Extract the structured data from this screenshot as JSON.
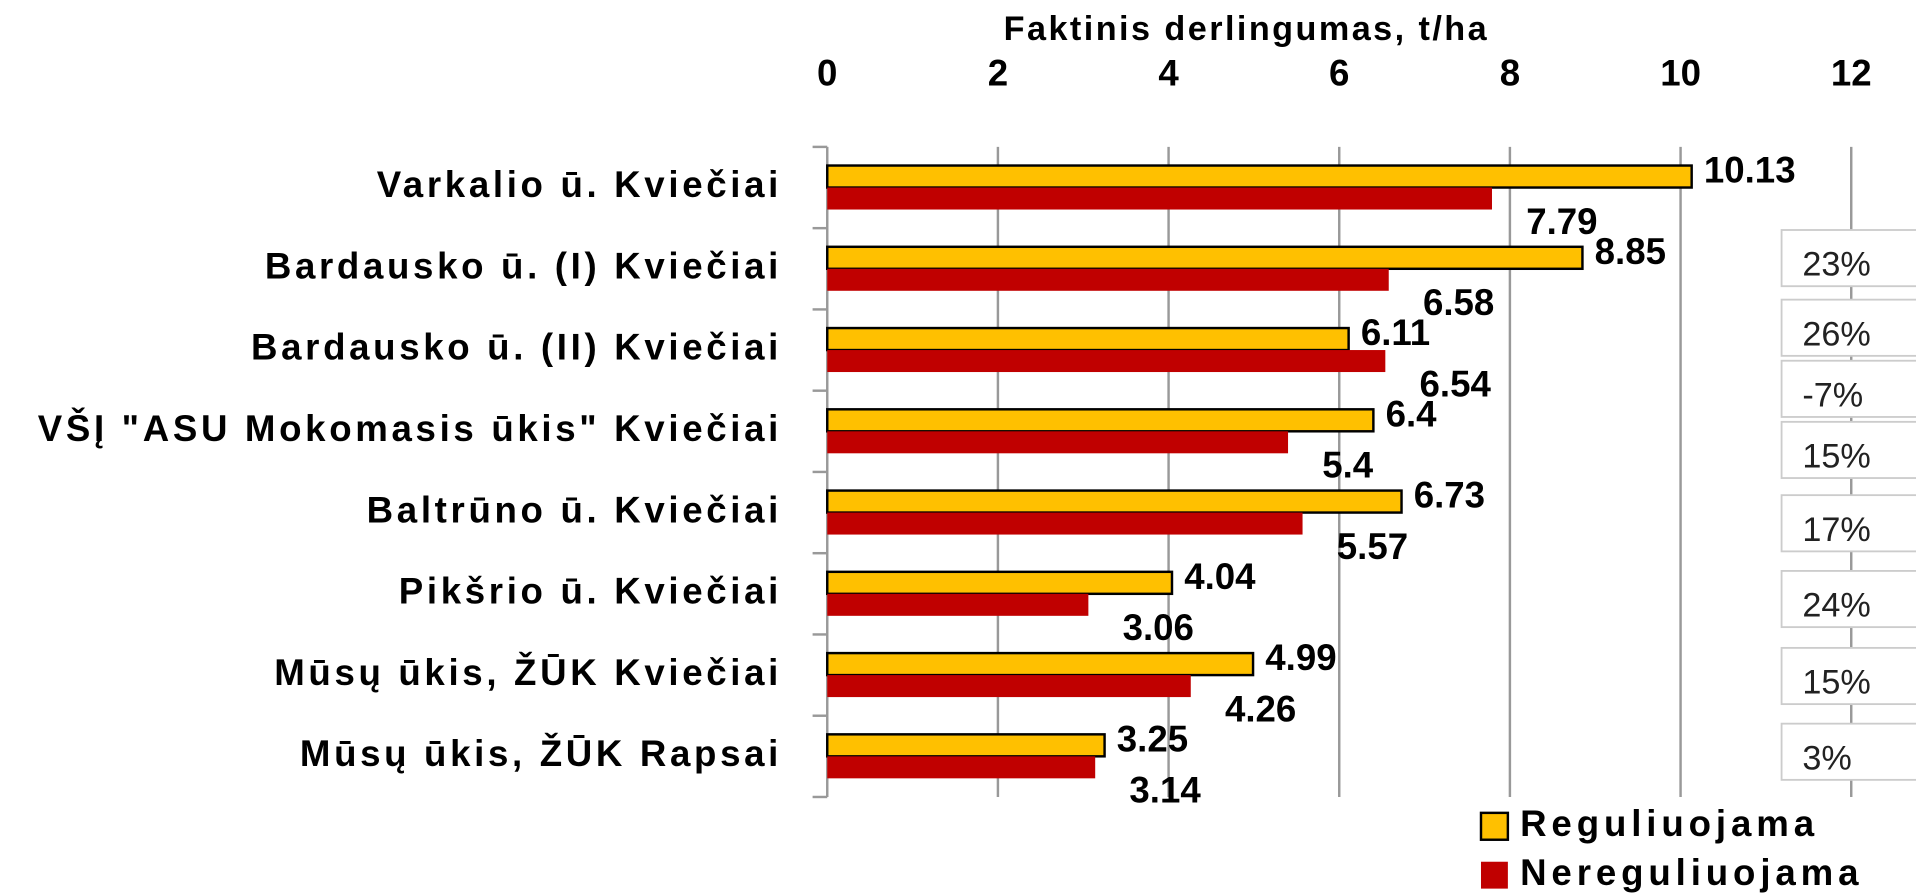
{
  "chart_data": {
    "type": "bar",
    "orientation": "horizontal",
    "title": "Faktinis derlingumas, t/ha",
    "categories": [
      "Varkalio ū. Kviečiai",
      "Bardausko ū. (I) Kviečiai",
      "Bardausko ū. (II) Kviečiai",
      "VŠĮ \"ASU Mokomasis ūkis\" Kviečiai",
      "Baltrūno ū. Kviečiai",
      "Pikšrio ū. Kviečiai",
      "Mūsų ūkis, ŽŪK Kviečiai",
      "Mūsų ūkis, ŽŪK Rapsai"
    ],
    "series": [
      {
        "name": "Reguliuojama",
        "color": "#ffc000",
        "values": [
          10.13,
          8.85,
          6.11,
          6.4,
          6.73,
          4.04,
          4.99,
          3.25
        ]
      },
      {
        "name": "Nereguliuojama",
        "color": "#c00000",
        "values": [
          7.79,
          6.58,
          6.54,
          5.4,
          5.57,
          3.06,
          4.26,
          3.14
        ]
      }
    ],
    "xlim": [
      0,
      12
    ],
    "xticks": [
      0,
      2,
      4,
      6,
      8,
      10,
      12
    ],
    "grid": true,
    "legend": "bottom-right",
    "annotations": [
      "23%",
      "26%",
      "-7%",
      "15%",
      "17%",
      "24%",
      "15%",
      "3%"
    ]
  }
}
